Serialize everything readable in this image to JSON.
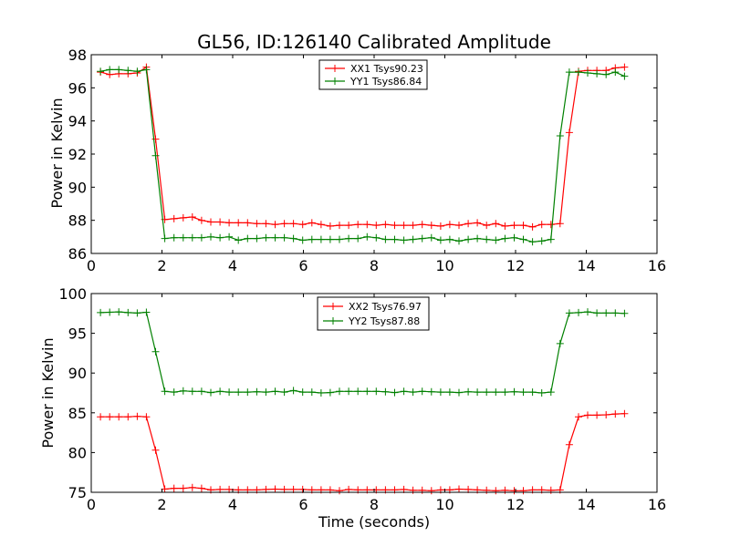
{
  "chart_data": [
    {
      "type": "line",
      "title": "GL56, ID:126140 Calibrated Amplitude",
      "xlabel": "",
      "ylabel": "Power in Kelvin",
      "xlim": [
        0,
        16
      ],
      "ylim": [
        86,
        98
      ],
      "xticks": [
        0,
        2,
        4,
        6,
        8,
        10,
        12,
        14,
        16
      ],
      "yticks": [
        86,
        88,
        90,
        92,
        94,
        96,
        98
      ],
      "grid": false,
      "legend": "top-center",
      "x": [
        0.26,
        0.52,
        0.78,
        1.04,
        1.3,
        1.56,
        1.82,
        2.08,
        2.34,
        2.6,
        2.86,
        3.12,
        3.38,
        3.64,
        3.9,
        4.16,
        4.42,
        4.68,
        4.94,
        5.2,
        5.46,
        5.72,
        5.98,
        6.24,
        6.5,
        6.76,
        7.02,
        7.28,
        7.54,
        7.8,
        8.06,
        8.32,
        8.58,
        8.84,
        9.1,
        9.36,
        9.62,
        9.88,
        10.14,
        10.4,
        10.66,
        10.92,
        11.18,
        11.44,
        11.7,
        11.96,
        12.22,
        12.48,
        12.74,
        13.0,
        13.26,
        13.52,
        13.78,
        14.04,
        14.3,
        14.56,
        14.82,
        15.08
      ],
      "series": [
        {
          "name": "XX1 Tsys90.23",
          "color": "#ff0000",
          "values": [
            96.95,
            96.8,
            96.85,
            96.85,
            96.9,
            97.25,
            92.9,
            88.05,
            88.1,
            88.15,
            88.2,
            88.0,
            87.9,
            87.9,
            87.85,
            87.85,
            87.85,
            87.8,
            87.8,
            87.75,
            87.8,
            87.8,
            87.75,
            87.85,
            87.75,
            87.65,
            87.7,
            87.7,
            87.75,
            87.75,
            87.7,
            87.75,
            87.7,
            87.7,
            87.7,
            87.75,
            87.7,
            87.65,
            87.75,
            87.7,
            87.8,
            87.85,
            87.7,
            87.8,
            87.65,
            87.7,
            87.7,
            87.6,
            87.75,
            87.75,
            87.8,
            93.3,
            97.0,
            97.05,
            97.05,
            97.05,
            97.2,
            97.25
          ]
        },
        {
          "name": "YY1 Tsys86.84",
          "color": "#008000",
          "values": [
            97.0,
            97.1,
            97.1,
            97.05,
            97.0,
            97.1,
            91.9,
            86.9,
            86.95,
            86.95,
            86.95,
            86.95,
            87.0,
            86.95,
            87.0,
            86.8,
            86.9,
            86.9,
            86.95,
            86.95,
            86.95,
            86.9,
            86.8,
            86.85,
            86.85,
            86.85,
            86.85,
            86.9,
            86.9,
            87.0,
            86.95,
            86.85,
            86.85,
            86.8,
            86.85,
            86.9,
            86.95,
            86.8,
            86.85,
            86.75,
            86.85,
            86.9,
            86.85,
            86.8,
            86.9,
            86.95,
            86.85,
            86.7,
            86.75,
            86.85,
            93.1,
            96.95,
            96.95,
            96.9,
            96.85,
            96.8,
            96.95,
            96.7
          ]
        }
      ]
    },
    {
      "type": "line",
      "title": "",
      "xlabel": "Time (seconds)",
      "ylabel": "Power in Kelvin",
      "xlim": [
        0,
        16
      ],
      "ylim": [
        75,
        100
      ],
      "xticks": [
        0,
        2,
        4,
        6,
        8,
        10,
        12,
        14,
        16
      ],
      "yticks": [
        75,
        80,
        85,
        90,
        95,
        100
      ],
      "grid": false,
      "legend": "top-center",
      "x": [
        0.26,
        0.52,
        0.78,
        1.04,
        1.3,
        1.56,
        1.82,
        2.08,
        2.34,
        2.6,
        2.86,
        3.12,
        3.38,
        3.64,
        3.9,
        4.16,
        4.42,
        4.68,
        4.94,
        5.2,
        5.46,
        5.72,
        5.98,
        6.24,
        6.5,
        6.76,
        7.02,
        7.28,
        7.54,
        7.8,
        8.06,
        8.32,
        8.58,
        8.84,
        9.1,
        9.36,
        9.62,
        9.88,
        10.14,
        10.4,
        10.66,
        10.92,
        11.18,
        11.44,
        11.7,
        11.96,
        12.22,
        12.48,
        12.74,
        13.0,
        13.26,
        13.52,
        13.78,
        14.04,
        14.3,
        14.56,
        14.82,
        15.08
      ],
      "series": [
        {
          "name": "XX2 Tsys76.97",
          "color": "#ff0000",
          "values": [
            84.5,
            84.5,
            84.5,
            84.5,
            84.55,
            84.5,
            80.3,
            75.4,
            75.5,
            75.5,
            75.6,
            75.5,
            75.3,
            75.35,
            75.35,
            75.3,
            75.3,
            75.3,
            75.35,
            75.4,
            75.35,
            75.35,
            75.35,
            75.3,
            75.3,
            75.3,
            75.2,
            75.35,
            75.3,
            75.3,
            75.3,
            75.3,
            75.3,
            75.35,
            75.25,
            75.25,
            75.2,
            75.3,
            75.3,
            75.4,
            75.35,
            75.3,
            75.25,
            75.2,
            75.25,
            75.2,
            75.2,
            75.3,
            75.3,
            75.25,
            75.3,
            81.0,
            84.5,
            84.7,
            84.7,
            84.75,
            84.85,
            84.9
          ]
        },
        {
          "name": "YY2 Tsys87.88",
          "color": "#008000",
          "values": [
            97.6,
            97.65,
            97.7,
            97.6,
            97.55,
            97.65,
            92.7,
            87.7,
            87.6,
            87.75,
            87.7,
            87.7,
            87.55,
            87.7,
            87.6,
            87.6,
            87.6,
            87.65,
            87.6,
            87.7,
            87.6,
            87.8,
            87.6,
            87.6,
            87.5,
            87.55,
            87.7,
            87.7,
            87.7,
            87.7,
            87.7,
            87.65,
            87.55,
            87.7,
            87.6,
            87.7,
            87.65,
            87.6,
            87.6,
            87.55,
            87.65,
            87.6,
            87.6,
            87.6,
            87.6,
            87.65,
            87.6,
            87.6,
            87.5,
            87.6,
            93.7,
            97.55,
            97.6,
            97.7,
            97.55,
            97.55,
            97.55,
            97.5
          ]
        }
      ]
    }
  ]
}
